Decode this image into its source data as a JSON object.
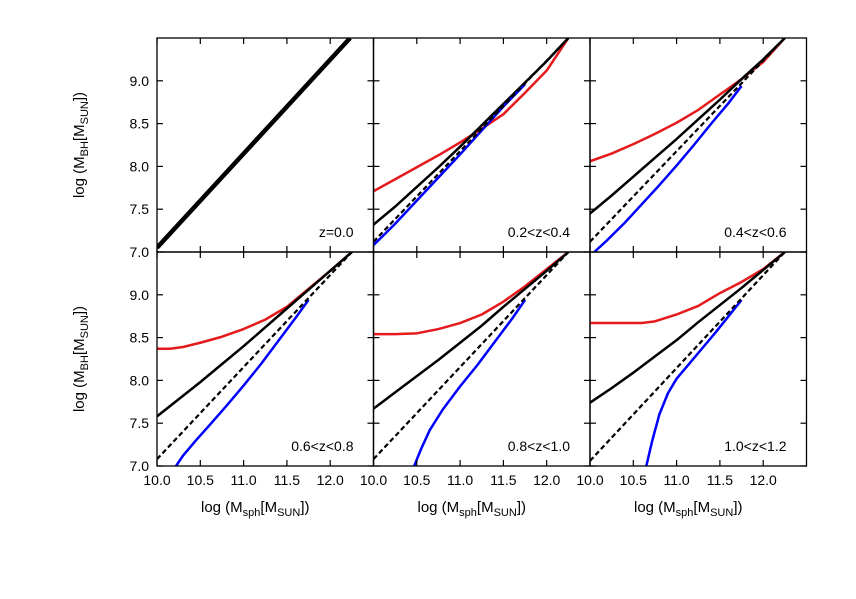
{
  "chart_data": [
    {
      "type": "line",
      "label": "z=0.0",
      "xlim": [
        10.0,
        12.5
      ],
      "ylim": [
        7.0,
        9.5
      ],
      "series": [
        {
          "color": "#000000",
          "style": "solid-thick",
          "x": [
            10.0,
            12.23
          ],
          "y": [
            7.05,
            9.5
          ]
        }
      ]
    },
    {
      "type": "line",
      "label": "0.2<z<0.4",
      "xlim": [
        10.0,
        12.5
      ],
      "ylim": [
        7.0,
        9.5
      ],
      "series": [
        {
          "color": "#e41a1c",
          "style": "solid",
          "x": [
            10.0,
            10.25,
            10.5,
            10.75,
            11.0,
            11.25,
            11.5,
            11.75,
            12.0,
            12.25
          ],
          "y": [
            7.71,
            7.85,
            7.99,
            8.13,
            8.28,
            8.44,
            8.61,
            8.86,
            9.12,
            9.5
          ]
        },
        {
          "color": "#000000",
          "style": "solid",
          "x": [
            10.0,
            10.25,
            10.5,
            10.75,
            11.0,
            11.25,
            11.5,
            11.75,
            12.0,
            12.25
          ],
          "y": [
            7.32,
            7.53,
            7.76,
            7.99,
            8.23,
            8.48,
            8.73,
            8.98,
            9.23,
            9.5
          ]
        },
        {
          "color": "#0000ff",
          "style": "solid",
          "x": [
            10.0,
            10.1,
            10.25,
            10.5,
            10.75,
            11.0,
            11.25,
            11.5,
            11.75
          ],
          "y": [
            7.08,
            7.18,
            7.33,
            7.6,
            7.87,
            8.14,
            8.42,
            8.7,
            8.96
          ]
        },
        {
          "color": "#000000",
          "style": "dashed",
          "x": [
            10.0,
            12.25
          ],
          "y": [
            7.12,
            9.5
          ]
        }
      ]
    },
    {
      "type": "line",
      "label": "0.4<z<0.6",
      "xlim": [
        10.0,
        12.5
      ],
      "ylim": [
        7.0,
        9.5
      ],
      "series": [
        {
          "color": "#e41a1c",
          "style": "solid",
          "x": [
            10.0,
            10.25,
            10.5,
            10.75,
            11.0,
            11.25,
            11.5,
            11.75,
            12.0,
            12.25
          ],
          "y": [
            8.06,
            8.15,
            8.26,
            8.38,
            8.51,
            8.66,
            8.84,
            9.02,
            9.22,
            9.5
          ]
        },
        {
          "color": "#000000",
          "style": "solid",
          "x": [
            10.0,
            10.25,
            10.5,
            10.75,
            11.0,
            11.25,
            11.5,
            11.75,
            12.0,
            12.25
          ],
          "y": [
            7.45,
            7.66,
            7.88,
            8.1,
            8.32,
            8.55,
            8.78,
            9.02,
            9.25,
            9.5
          ]
        },
        {
          "color": "#0000ff",
          "style": "solid",
          "x": [
            10.05,
            10.2,
            10.4,
            10.6,
            10.8,
            11.0,
            11.2,
            11.4,
            11.6,
            11.75
          ],
          "y": [
            7.0,
            7.14,
            7.34,
            7.56,
            7.78,
            8.01,
            8.25,
            8.5,
            8.74,
            8.94
          ]
        },
        {
          "color": "#000000",
          "style": "dashed",
          "x": [
            10.0,
            12.25
          ],
          "y": [
            7.12,
            9.5
          ]
        }
      ]
    },
    {
      "type": "line",
      "label": "0.6<z<0.8",
      "xlim": [
        10.0,
        12.5
      ],
      "ylim": [
        7.0,
        9.5
      ],
      "series": [
        {
          "color": "#e41a1c",
          "style": "solid",
          "x": [
            10.0,
            10.15,
            10.3,
            10.5,
            10.75,
            11.0,
            11.25,
            11.5,
            11.75,
            12.0,
            12.25
          ],
          "y": [
            8.37,
            8.37,
            8.39,
            8.44,
            8.51,
            8.6,
            8.71,
            8.86,
            9.07,
            9.28,
            9.5
          ]
        },
        {
          "color": "#000000",
          "style": "solid",
          "x": [
            10.0,
            10.25,
            10.5,
            10.75,
            11.0,
            11.25,
            11.5,
            11.75,
            12.0,
            12.25
          ],
          "y": [
            7.58,
            7.78,
            7.98,
            8.19,
            8.4,
            8.62,
            8.84,
            9.06,
            9.28,
            9.5
          ]
        },
        {
          "color": "#0000ff",
          "style": "solid",
          "x": [
            10.22,
            10.3,
            10.45,
            10.6,
            10.8,
            11.0,
            11.2,
            11.4,
            11.6,
            11.75
          ],
          "y": [
            7.0,
            7.12,
            7.3,
            7.47,
            7.7,
            7.94,
            8.19,
            8.46,
            8.73,
            8.94
          ]
        },
        {
          "color": "#000000",
          "style": "dashed",
          "x": [
            10.0,
            12.25
          ],
          "y": [
            7.08,
            9.5
          ]
        }
      ]
    },
    {
      "type": "line",
      "label": "0.8<z<1.0",
      "xlim": [
        10.0,
        12.5
      ],
      "ylim": [
        7.0,
        9.5
      ],
      "series": [
        {
          "color": "#e41a1c",
          "style": "solid",
          "x": [
            10.0,
            10.25,
            10.5,
            10.75,
            11.0,
            11.25,
            11.5,
            11.75,
            12.0,
            12.25
          ],
          "y": [
            8.54,
            8.54,
            8.55,
            8.6,
            8.67,
            8.77,
            8.92,
            9.1,
            9.3,
            9.5
          ]
        },
        {
          "color": "#000000",
          "style": "solid",
          "x": [
            10.0,
            10.25,
            10.5,
            10.75,
            11.0,
            11.25,
            11.5,
            11.75,
            12.0,
            12.25
          ],
          "y": [
            7.67,
            7.86,
            8.05,
            8.24,
            8.44,
            8.64,
            8.86,
            9.07,
            9.28,
            9.5
          ]
        },
        {
          "color": "#0000ff",
          "style": "solid",
          "x": [
            10.47,
            10.55,
            10.65,
            10.8,
            11.0,
            11.2,
            11.4,
            11.6,
            11.75
          ],
          "y": [
            7.0,
            7.2,
            7.42,
            7.66,
            7.93,
            8.18,
            8.45,
            8.72,
            8.94
          ]
        },
        {
          "color": "#000000",
          "style": "dashed",
          "x": [
            10.0,
            12.25
          ],
          "y": [
            7.08,
            9.5
          ]
        }
      ]
    },
    {
      "type": "line",
      "label": "1.0<z<1.2",
      "xlim": [
        10.0,
        12.5
      ],
      "ylim": [
        7.0,
        9.5
      ],
      "series": [
        {
          "color": "#e41a1c",
          "style": "solid",
          "x": [
            10.0,
            10.25,
            10.5,
            10.6,
            10.75,
            11.0,
            11.25,
            11.5,
            11.75,
            12.0,
            12.25
          ],
          "y": [
            8.67,
            8.67,
            8.67,
            8.67,
            8.69,
            8.77,
            8.87,
            9.02,
            9.15,
            9.3,
            9.5
          ]
        },
        {
          "color": "#000000",
          "style": "solid",
          "x": [
            10.0,
            10.25,
            10.5,
            10.75,
            11.0,
            11.25,
            11.5,
            11.75,
            12.0,
            12.25
          ],
          "y": [
            7.74,
            7.91,
            8.09,
            8.28,
            8.47,
            8.68,
            8.88,
            9.08,
            9.29,
            9.5
          ]
        },
        {
          "color": "#0000ff",
          "style": "solid",
          "x": [
            10.65,
            10.72,
            10.8,
            10.9,
            11.0,
            11.15,
            11.3,
            11.45,
            11.6,
            11.75
          ],
          "y": [
            7.0,
            7.3,
            7.6,
            7.85,
            8.02,
            8.2,
            8.38,
            8.56,
            8.75,
            8.94
          ]
        },
        {
          "color": "#000000",
          "style": "dashed",
          "x": [
            10.0,
            12.25
          ],
          "y": [
            7.06,
            9.5
          ]
        }
      ]
    }
  ],
  "axes": {
    "ylabel": "log (M_BH[M_SUN])",
    "xlabel": "log (M_sph[M_SUN])",
    "ylabel_parts": {
      "pre": "log (M",
      "sub": "BH",
      "mid": "[M",
      "sub2": "SUN",
      "post": "])"
    },
    "xlabel_parts": {
      "pre": "log (M",
      "sub": "sph",
      "mid": "[M",
      "sub2": "SUN",
      "post": "])"
    },
    "xticks": [
      "10.0",
      "10.5",
      "11.0",
      "11.5",
      "12.0"
    ],
    "xtick_values": [
      10.0,
      10.5,
      11.0,
      11.5,
      12.0
    ],
    "yticks": [
      "7.0",
      "7.5",
      "8.0",
      "8.5",
      "9.0"
    ],
    "ytick_values": [
      7.0,
      7.5,
      8.0,
      8.5,
      9.0
    ]
  }
}
